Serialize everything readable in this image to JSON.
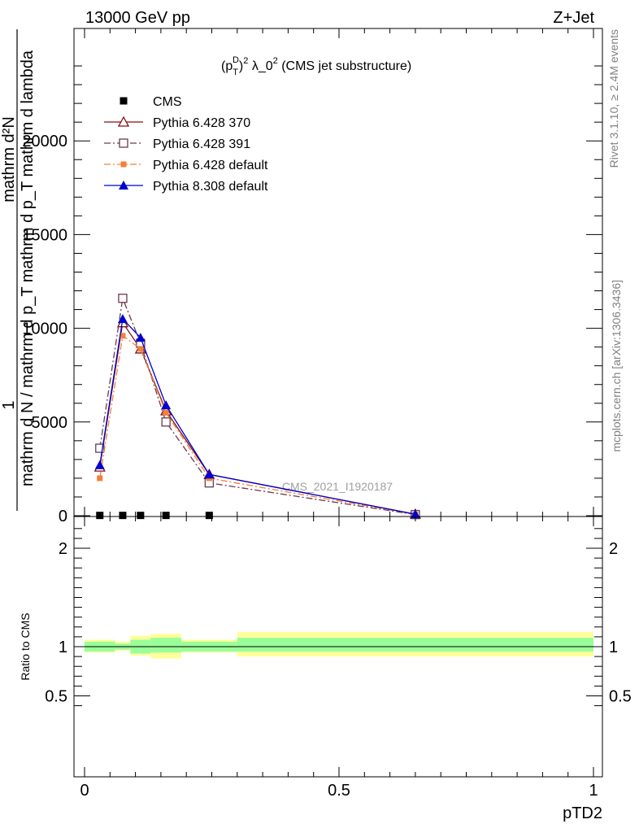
{
  "header": {
    "energy_label": "13000 GeV pp",
    "process_label": "Z+Jet"
  },
  "side_labels": {
    "rivet": "Rivet 3.1.10, ≥ 2.4M events",
    "mcplots": "mcplots.cern.ch [arXiv:1306.3436]"
  },
  "chart_data": [
    {
      "type": "line",
      "panel": "main",
      "title_parts": {
        "p": "(p",
        "sub_t": "T",
        "sup_d": "D",
        "tail": ")",
        "sup_2": "2",
        "lambda": " λ_0",
        "sup_2b": "2",
        "rest": " (CMS jet substructure)"
      },
      "watermark": "CMS_2021_I1920187",
      "ylabel_numerator": "1",
      "ylabel_denominator": "mathrm d N / mathrm d p_T mathrm d p_T mathrm d lambda",
      "ylabel_top": "mathrm d²N",
      "ylim": [
        0,
        26000
      ],
      "xlim": [
        -0.02,
        1.0
      ],
      "yticks": [
        0,
        5000,
        10000,
        15000,
        20000
      ],
      "ytick_labels": [
        "0",
        "5000",
        "10000",
        "15000",
        "20000"
      ],
      "grid": false,
      "legend_placement": "top-left",
      "series": [
        {
          "name": "CMS",
          "color": "#000000",
          "marker": "square-filled",
          "dash": "none",
          "x": [
            0.03,
            0.075,
            0.11,
            0.16,
            0.245
          ],
          "y": [
            15,
            15,
            15,
            15,
            15
          ]
        },
        {
          "name": "Pythia 6.428 370",
          "color": "#7f1010",
          "marker": "triangle-open",
          "dash": "solid",
          "x": [
            0.03,
            0.075,
            0.11,
            0.16,
            0.245,
            0.65
          ],
          "y": [
            2600,
            10300,
            8900,
            5600,
            2200,
            80
          ]
        },
        {
          "name": "Pythia 6.428 391",
          "color": "#6b3a50",
          "marker": "square-open",
          "dash": "dashdot",
          "x": [
            0.03,
            0.075,
            0.11,
            0.16,
            0.245,
            0.65
          ],
          "y": [
            3600,
            11600,
            9200,
            5000,
            1750,
            60
          ]
        },
        {
          "name": "Pythia 6.428 default",
          "color": "#f47f3a",
          "marker": "square-filled-small",
          "dash": "dashdot",
          "x": [
            0.03,
            0.075,
            0.11,
            0.16,
            0.245,
            0.65
          ],
          "y": [
            2000,
            9600,
            8900,
            5500,
            2000,
            70
          ]
        },
        {
          "name": "Pythia 8.308 default",
          "color": "#0000d0",
          "marker": "triangle-filled",
          "dash": "solid",
          "x": [
            0.03,
            0.075,
            0.11,
            0.16,
            0.245,
            0.65
          ],
          "y": [
            2700,
            10500,
            9500,
            5900,
            2200,
            80
          ]
        }
      ]
    },
    {
      "type": "area",
      "panel": "ratio",
      "ylabel": "Ratio to CMS",
      "xlabel": "pTD2",
      "ylim": [
        0.35,
        2.25
      ],
      "yticks": [
        0.5,
        1,
        2
      ],
      "ytick_labels": [
        "0.5",
        "1",
        "2"
      ],
      "xticks": [
        0,
        0.5,
        1
      ],
      "xtick_labels": [
        "0",
        "0.5",
        "1"
      ],
      "bins": [
        {
          "x0": 0.0,
          "x1": 0.06,
          "green": [
            0.95,
            1.05
          ],
          "yellow": [
            0.94,
            1.07
          ]
        },
        {
          "x0": 0.06,
          "x1": 0.09,
          "green": [
            0.97,
            1.03
          ],
          "yellow": [
            0.96,
            1.05
          ]
        },
        {
          "x0": 0.09,
          "x1": 0.13,
          "green": [
            0.93,
            1.07
          ],
          "yellow": [
            0.91,
            1.11
          ]
        },
        {
          "x0": 0.13,
          "x1": 0.19,
          "green": [
            0.94,
            1.09
          ],
          "yellow": [
            0.88,
            1.13
          ]
        },
        {
          "x0": 0.19,
          "x1": 0.3,
          "green": [
            0.95,
            1.05
          ],
          "yellow": [
            0.94,
            1.07
          ]
        },
        {
          "x0": 0.3,
          "x1": 1.0,
          "green": [
            0.95,
            1.09
          ],
          "yellow": [
            0.9,
            1.15
          ]
        }
      ]
    }
  ]
}
